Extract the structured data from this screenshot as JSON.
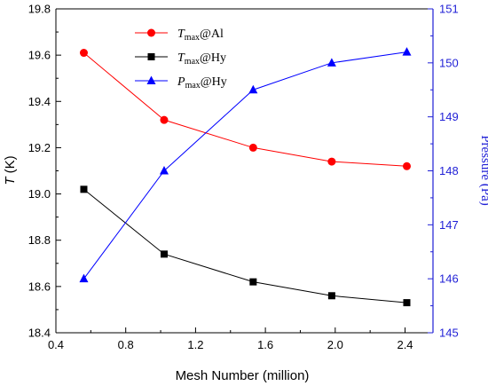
{
  "chart_data": {
    "type": "line",
    "x": [
      0.56,
      1.02,
      1.53,
      1.98,
      2.41
    ],
    "xlabel": "Mesh Number (million)",
    "xlim": [
      0.4,
      2.56
    ],
    "xticks": [
      0.4,
      0.8,
      1.2,
      1.6,
      2.0,
      2.4
    ],
    "xtick_labels": [
      "0.4",
      "0.8",
      "1.2",
      "1.6",
      "2.0",
      "2.4"
    ],
    "ylabel_left": {
      "italic": "T",
      "rest": " (K)"
    },
    "ylim_left": [
      18.4,
      19.8
    ],
    "yticks_left": [
      18.4,
      18.6,
      18.8,
      19.0,
      19.2,
      19.4,
      19.6,
      19.8
    ],
    "ytick_labels_left": [
      "18.4",
      "18.6",
      "18.8",
      "19.0",
      "19.2",
      "19.4",
      "19.6",
      "19.8"
    ],
    "ylabel_right": "Pressure (Pa)",
    "ylim_right": [
      145,
      151
    ],
    "yticks_right": [
      145,
      146,
      147,
      148,
      149,
      150,
      151
    ],
    "ytick_labels_right": [
      "145",
      "146",
      "147",
      "148",
      "149",
      "150",
      "151"
    ],
    "grid": false,
    "legend_position": "top-center",
    "series": [
      {
        "name": "Tmax@Al",
        "legend_main": "T",
        "legend_sub": "max",
        "legend_rest": "@Al",
        "axis": "left",
        "marker": "circle",
        "color": "#ff0000",
        "values": [
          19.61,
          19.32,
          19.2,
          19.14,
          19.12
        ]
      },
      {
        "name": "Tmax@Hy",
        "legend_main": "T",
        "legend_sub": "max",
        "legend_rest": "@Hy",
        "axis": "left",
        "marker": "square",
        "color": "#000000",
        "values": [
          19.02,
          18.74,
          18.62,
          18.56,
          18.53
        ]
      },
      {
        "name": "Pmax@Hy",
        "legend_main": "P",
        "legend_sub": "max",
        "legend_rest": "@Hy",
        "axis": "right",
        "marker": "triangle",
        "color": "#0000ff",
        "values": [
          146.0,
          148.0,
          149.5,
          150.0,
          150.2
        ]
      }
    ],
    "axis_color_right": "#1f1fd6"
  }
}
